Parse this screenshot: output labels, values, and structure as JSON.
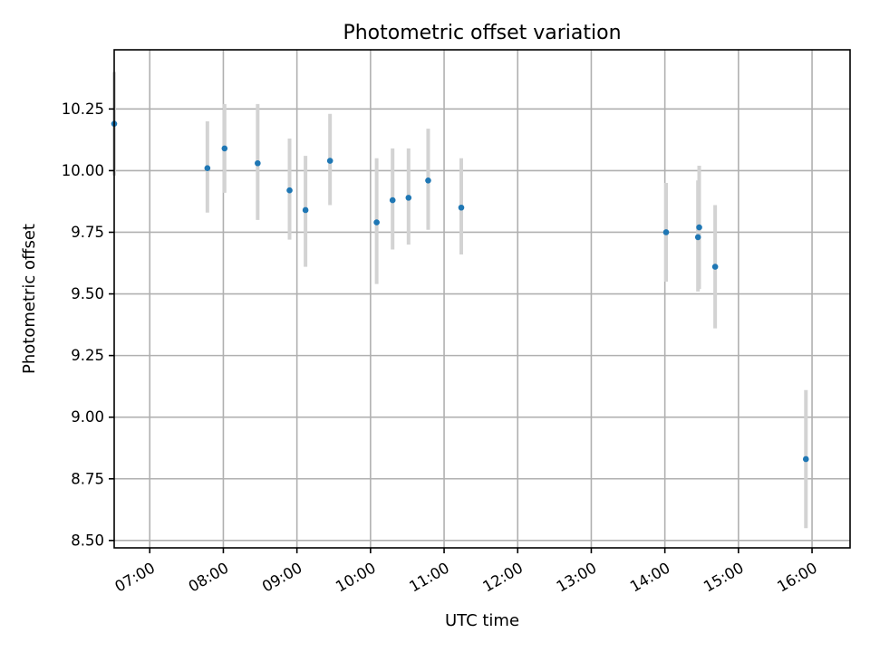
{
  "chart_data": {
    "type": "scatter",
    "title": "Photometric offset variation",
    "xlabel": "UTC time",
    "ylabel": "Photometric offset",
    "xlim": [
      "06:31",
      "16:31"
    ],
    "ylim": [
      8.47,
      10.49
    ],
    "x_ticks": [
      "07:00",
      "08:00",
      "09:00",
      "10:00",
      "11:00",
      "12:00",
      "13:00",
      "14:00",
      "15:00",
      "16:00"
    ],
    "y_ticks": [
      "8.50",
      "8.75",
      "9.00",
      "9.25",
      "9.50",
      "9.75",
      "10.00",
      "10.25"
    ],
    "grid": true,
    "marker_color": "#1f77b4",
    "errorbar_color": "#d3d3d3",
    "series": [
      {
        "points": [
          {
            "x": "06:31",
            "y": 10.19,
            "ylow": 9.98,
            "yhigh": 10.4
          },
          {
            "x": "07:47",
            "y": 10.01,
            "ylow": 9.83,
            "yhigh": 10.2
          },
          {
            "x": "08:01",
            "y": 10.09,
            "ylow": 9.91,
            "yhigh": 10.27
          },
          {
            "x": "08:28",
            "y": 10.03,
            "ylow": 9.8,
            "yhigh": 10.27
          },
          {
            "x": "08:54",
            "y": 9.92,
            "ylow": 9.72,
            "yhigh": 10.13
          },
          {
            "x": "09:07",
            "y": 9.84,
            "ylow": 9.61,
            "yhigh": 10.06
          },
          {
            "x": "09:27",
            "y": 10.04,
            "ylow": 9.86,
            "yhigh": 10.23
          },
          {
            "x": "10:05",
            "y": 9.79,
            "ylow": 9.54,
            "yhigh": 10.05
          },
          {
            "x": "10:18",
            "y": 9.88,
            "ylow": 9.68,
            "yhigh": 10.09
          },
          {
            "x": "10:31",
            "y": 9.89,
            "ylow": 9.7,
            "yhigh": 10.09
          },
          {
            "x": "10:47",
            "y": 9.96,
            "ylow": 9.76,
            "yhigh": 10.17
          },
          {
            "x": "11:14",
            "y": 9.85,
            "ylow": 9.66,
            "yhigh": 10.05
          },
          {
            "x": "14:01",
            "y": 9.75,
            "ylow": 9.55,
            "yhigh": 9.95
          },
          {
            "x": "14:27",
            "y": 9.73,
            "ylow": 9.51,
            "yhigh": 9.96
          },
          {
            "x": "14:28",
            "y": 9.77,
            "ylow": 9.52,
            "yhigh": 10.02
          },
          {
            "x": "14:41",
            "y": 9.61,
            "ylow": 9.36,
            "yhigh": 9.86
          },
          {
            "x": "15:55",
            "y": 8.83,
            "ylow": 8.55,
            "yhigh": 9.11
          }
        ]
      }
    ]
  }
}
